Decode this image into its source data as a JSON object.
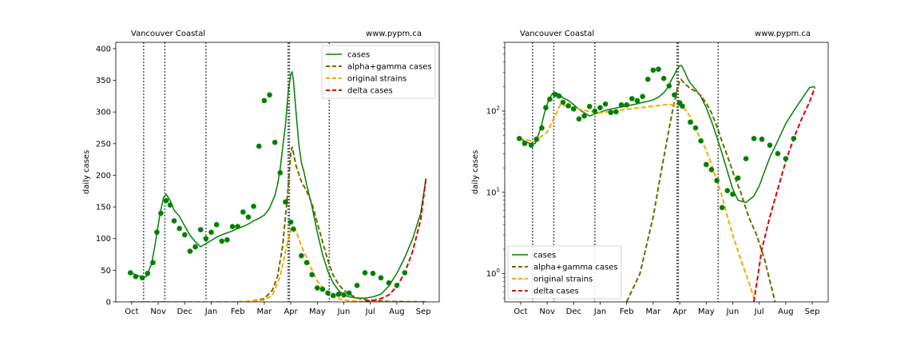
{
  "chart_data": [
    {
      "type": "line",
      "scale": "linear",
      "ylabel": "daily cases",
      "ylim": [
        0,
        410
      ],
      "yticks": [
        0,
        50,
        100,
        150,
        200,
        250,
        300,
        350,
        400
      ],
      "xlim": [
        -0.6,
        11.6
      ],
      "xtick_labels": [
        "Oct",
        "Nov",
        "Dec",
        "Jan",
        "Feb",
        "Mar",
        "Apr",
        "May",
        "Jun",
        "Jul",
        "Aug",
        "Sep"
      ],
      "annotation_left": "Vancouver Coastal",
      "annotation_right": "www.pypm.ca",
      "legend_position": "upper right",
      "vlines": [
        0.45,
        1.25,
        2.8,
        5.9,
        5.95,
        7.45
      ],
      "series": [
        {
          "name": "cases",
          "style": "solid",
          "color": "#008000",
          "x": [
            -0.05,
            0.2,
            0.4,
            0.55,
            0.75,
            0.9,
            1.05,
            1.2,
            1.3,
            1.45,
            1.6,
            1.8,
            2.0,
            2.2,
            2.4,
            2.6,
            2.8,
            3.0,
            3.2,
            3.4,
            3.6,
            3.8,
            4.0,
            4.2,
            4.4,
            4.6,
            4.8,
            5.0,
            5.2,
            5.4,
            5.5,
            5.6,
            5.7,
            5.8,
            5.9,
            6.0,
            6.05,
            6.1,
            6.2,
            6.3,
            6.4,
            6.5,
            6.6,
            6.8,
            7.0,
            7.2,
            7.4,
            7.6,
            7.8,
            8.0,
            8.2,
            8.5,
            8.8,
            9.1,
            9.4,
            9.7,
            10.0,
            10.3,
            10.6,
            10.9,
            11.1
          ],
          "y": [
            46,
            42,
            39,
            40,
            60,
            95,
            135,
            165,
            170,
            160,
            145,
            135,
            120,
            105,
            95,
            87,
            92,
            97,
            102,
            106,
            109,
            112,
            116,
            119,
            123,
            128,
            132,
            137,
            148,
            168,
            185,
            210,
            245,
            280,
            330,
            360,
            363,
            350,
            300,
            250,
            220,
            205,
            185,
            150,
            110,
            75,
            48,
            30,
            18,
            11,
            8,
            6,
            6,
            8,
            12,
            25,
            45,
            70,
            100,
            140,
            195
          ]
        },
        {
          "name": "alpha+gamma cases",
          "style": "dashed",
          "color": "#6b6b00",
          "x": [
            -0.05,
            2.0,
            4.0,
            4.5,
            5.0,
            5.3,
            5.5,
            5.7,
            5.9,
            6.0,
            6.05,
            6.2,
            6.4,
            6.6,
            6.8,
            7.0,
            7.2,
            7.4,
            7.6,
            7.8,
            8.0,
            8.3,
            8.6,
            8.9,
            9.2,
            9.6,
            10.0,
            10.6,
            11.1
          ],
          "y": [
            0,
            0,
            0,
            1,
            5,
            18,
            40,
            90,
            180,
            235,
            245,
            215,
            190,
            175,
            155,
            125,
            95,
            65,
            42,
            28,
            18,
            10,
            5,
            3,
            2,
            1,
            0.5,
            0.2,
            0.1
          ]
        },
        {
          "name": "original strains",
          "style": "dashed",
          "color": "#ffa500",
          "x": [
            -0.05,
            3.0,
            4.0,
            4.5,
            5.0,
            5.3,
            5.6,
            5.8,
            6.0,
            6.1,
            6.2,
            6.3,
            6.4,
            6.6,
            6.8,
            7.0,
            7.2,
            7.4,
            7.6,
            7.8,
            8.0,
            8.3,
            8.6,
            9.0,
            9.5,
            10.0,
            11.1
          ],
          "y": [
            0,
            0,
            0,
            1,
            3,
            10,
            40,
            80,
            115,
            118,
            112,
            100,
            88,
            70,
            50,
            33,
            22,
            14,
            9,
            5,
            3,
            1.5,
            0.8,
            0.3,
            0.1,
            0.05,
            0
          ]
        },
        {
          "name": "delta cases",
          "style": "dashed",
          "color": "#d40000",
          "x": [
            8.8,
            9.1,
            9.4,
            9.7,
            10.0,
            10.3,
            10.6,
            10.9,
            11.1
          ],
          "y": [
            0.8,
            2,
            5,
            11,
            24,
            46,
            80,
            130,
            195
          ]
        }
      ],
      "points": {
        "x": [
          -0.05,
          0.15,
          0.4,
          0.6,
          0.8,
          0.95,
          1.1,
          1.3,
          1.45,
          1.6,
          1.8,
          2.0,
          2.2,
          2.4,
          2.6,
          2.8,
          3.0,
          3.2,
          3.4,
          3.6,
          3.8,
          4.0,
          4.2,
          4.4,
          4.6,
          4.8,
          5.0,
          5.2,
          5.4,
          5.6,
          5.8,
          6.0,
          6.1,
          6.4,
          6.6,
          6.8,
          7.0,
          7.2,
          7.4,
          7.6,
          7.8,
          8.0,
          8.2,
          8.5,
          8.8,
          9.1,
          9.4,
          9.7,
          10.0,
          10.3
        ],
        "y": [
          46,
          40,
          38,
          45,
          62,
          110,
          140,
          160,
          153,
          128,
          116,
          106,
          80,
          87,
          114,
          100,
          110,
          122,
          96,
          98,
          119,
          119,
          142,
          134,
          151,
          246,
          318,
          327,
          252,
          204,
          158,
          126,
          115,
          73,
          62,
          43,
          22,
          20,
          14,
          10,
          12,
          11,
          14,
          26,
          46,
          45,
          38,
          30,
          26,
          46
        ]
      }
    },
    {
      "type": "line",
      "scale": "log",
      "ylabel": "daily cases",
      "ylim": [
        0.45,
        700
      ],
      "yticks": [
        1,
        10,
        100
      ],
      "ytick_labels": [
        "10^0",
        "10^1",
        "10^2"
      ],
      "xlim": [
        -0.6,
        11.6
      ],
      "xtick_labels": [
        "Oct",
        "Nov",
        "Dec",
        "Jan",
        "Feb",
        "Mar",
        "Apr",
        "May",
        "Jun",
        "Jul",
        "Aug",
        "Sep"
      ],
      "annotation_left": "Vancouver Coastal",
      "annotation_right": "www.pypm.ca",
      "legend_position": "lower left",
      "vlines": [
        0.45,
        1.25,
        2.8,
        5.9,
        5.95,
        7.45
      ],
      "series": [
        {
          "name": "cases",
          "style": "solid",
          "color": "#008000",
          "x": [
            -0.05,
            0.2,
            0.4,
            0.55,
            0.75,
            0.9,
            1.05,
            1.2,
            1.3,
            1.45,
            1.6,
            1.8,
            2.0,
            2.2,
            2.4,
            2.6,
            2.8,
            3.0,
            3.2,
            3.4,
            3.6,
            3.8,
            4.0,
            4.2,
            4.4,
            4.6,
            4.8,
            5.0,
            5.2,
            5.4,
            5.5,
            5.6,
            5.7,
            5.8,
            5.9,
            6.0,
            6.05,
            6.1,
            6.2,
            6.3,
            6.4,
            6.6,
            6.8,
            7.0,
            7.2,
            7.4,
            7.6,
            7.8,
            8.0,
            8.2,
            8.5,
            8.8,
            9.0,
            9.2,
            9.4,
            9.7,
            10.0,
            10.3,
            10.6,
            10.9,
            11.1
          ],
          "y": [
            46,
            42,
            39,
            40,
            60,
            95,
            135,
            165,
            170,
            160,
            145,
            135,
            120,
            105,
            95,
            87,
            92,
            97,
            102,
            106,
            109,
            112,
            116,
            119,
            123,
            128,
            132,
            137,
            148,
            168,
            185,
            210,
            245,
            280,
            330,
            360,
            363,
            350,
            300,
            250,
            220,
            185,
            150,
            110,
            75,
            48,
            30,
            18,
            11,
            8,
            7.5,
            9,
            12,
            18,
            27,
            43,
            70,
            100,
            140,
            195,
            200
          ]
        },
        {
          "name": "alpha+gamma cases",
          "style": "dashed",
          "color": "#6b6b00",
          "x": [
            4.0,
            4.5,
            5.0,
            5.3,
            5.5,
            5.7,
            5.9,
            6.0,
            6.05,
            6.2,
            6.4,
            6.6,
            6.8,
            7.0,
            7.2,
            7.4,
            7.6,
            7.8,
            8.0,
            8.3,
            8.6,
            8.9,
            9.2,
            9.6
          ],
          "y": [
            0.45,
            1,
            5,
            18,
            40,
            90,
            180,
            235,
            245,
            215,
            190,
            175,
            155,
            125,
            95,
            65,
            42,
            28,
            18,
            10,
            5,
            3,
            1.5,
            0.45
          ]
        },
        {
          "name": "original strains",
          "style": "dashed",
          "color": "#ffa500",
          "x": [
            -0.05,
            0.5,
            1.0,
            1.5,
            2.0,
            2.5,
            3.0,
            3.5,
            4.0,
            4.5,
            5.0,
            5.5,
            5.8,
            6.0,
            6.1,
            6.2,
            6.4,
            6.6,
            6.8,
            7.0,
            7.2,
            7.4,
            7.6,
            7.8,
            8.0,
            8.3,
            8.6,
            8.85
          ],
          "y": [
            46,
            42,
            55,
            120,
            110,
            100,
            95,
            100,
            105,
            110,
            115,
            120,
            120,
            118,
            115,
            105,
            85,
            60,
            45,
            33,
            22,
            14,
            9,
            5,
            3,
            1.5,
            0.8,
            0.45
          ]
        },
        {
          "name": "delta cases",
          "style": "dashed",
          "color": "#d40000",
          "x": [
            8.8,
            9.1,
            9.4,
            9.7,
            10.0,
            10.3,
            10.6,
            10.9,
            11.1
          ],
          "y": [
            0.45,
            2,
            5,
            11,
            24,
            46,
            80,
            130,
            195
          ]
        }
      ],
      "points": {
        "x": [
          -0.05,
          0.15,
          0.4,
          0.6,
          0.8,
          0.95,
          1.1,
          1.3,
          1.45,
          1.6,
          1.8,
          2.0,
          2.2,
          2.4,
          2.6,
          2.8,
          3.0,
          3.2,
          3.4,
          3.6,
          3.8,
          4.0,
          4.2,
          4.4,
          4.6,
          4.8,
          5.0,
          5.2,
          5.4,
          5.6,
          5.8,
          6.0,
          6.1,
          6.4,
          6.6,
          6.8,
          7.0,
          7.2,
          7.4,
          7.6,
          7.8,
          8.0,
          8.2,
          8.5,
          8.8,
          9.1,
          9.4,
          9.7,
          10.0,
          10.3
        ],
        "y": [
          46,
          40,
          38,
          45,
          62,
          110,
          140,
          160,
          153,
          128,
          116,
          106,
          80,
          87,
          114,
          100,
          110,
          122,
          96,
          98,
          119,
          119,
          142,
          134,
          151,
          246,
          318,
          327,
          252,
          204,
          158,
          126,
          115,
          73,
          62,
          43,
          22,
          19,
          14,
          6.5,
          10.5,
          9.5,
          15,
          26,
          46,
          45,
          38,
          30,
          26,
          46
        ]
      }
    }
  ]
}
